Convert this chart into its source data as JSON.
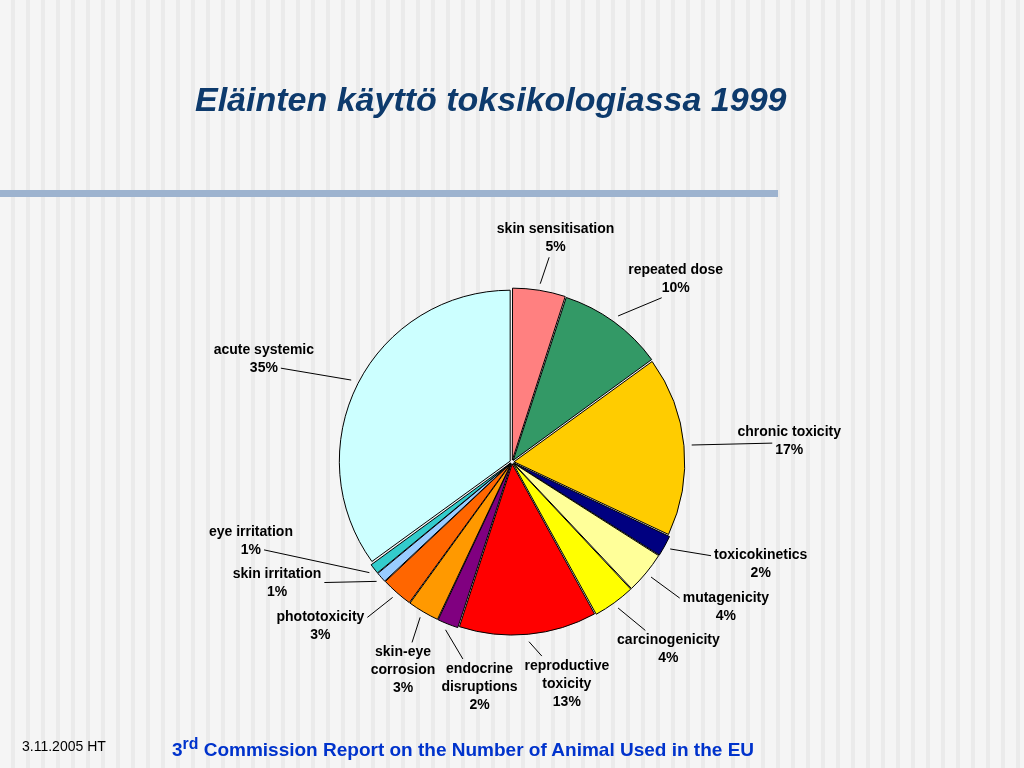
{
  "chart_data": {
    "type": "pie",
    "title": "Eläinten käyttö toksikologiassa 1999",
    "categories": [
      "skin sensitisation",
      "repeated dose",
      "chronic toxicity",
      "toxicokinetics",
      "mutagenicity",
      "carcinogenicity",
      "reproductive toxicity",
      "endocrine disruptions",
      "skin-eye corrosion",
      "phototoxicity",
      "skin irritation",
      "eye irritation",
      "acute systemic"
    ],
    "values": [
      5,
      10,
      17,
      2,
      4,
      4,
      13,
      2,
      3,
      3,
      1,
      1,
      35
    ],
    "colors": [
      "#ff8080",
      "#339966",
      "#ffcc00",
      "#000080",
      "#ffff99",
      "#ffff00",
      "#ff0000",
      "#800080",
      "#ff9900",
      "#ff6600",
      "#99ccff",
      "#33cccc",
      "#ccffff"
    ],
    "value_labels": [
      "5%",
      "10%",
      "17%",
      "2%",
      "4%",
      "4%",
      "13%",
      "2%",
      "3%",
      "3%",
      "1%",
      "1%",
      "35%"
    ],
    "annotations": [
      "3.11.2005 HT",
      "3$^{rd}$ Commission Report on the Number of Animal Used in the EU"
    ]
  }
}
